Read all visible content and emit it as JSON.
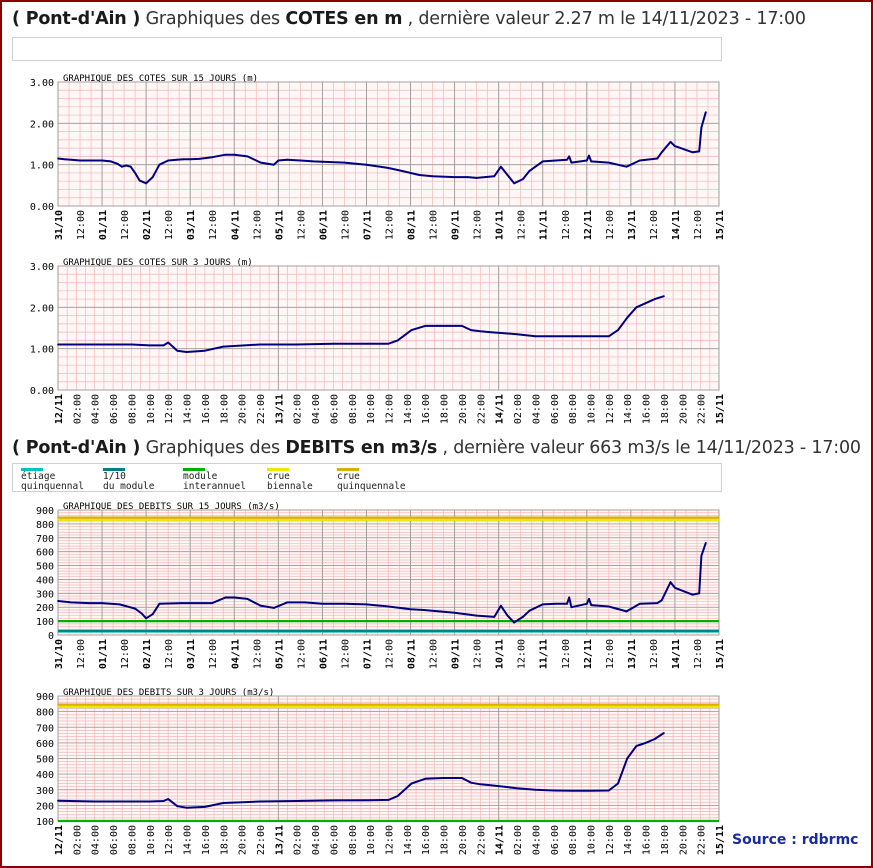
{
  "cotes_heading": {
    "station": "( Pont-d'Ain )",
    "prefix": " Graphiques des ",
    "measure": "COTES en m",
    "suffix": " , dernière valeur 2.27 m le 14/11/2023 - 17:00"
  },
  "debits_heading": {
    "station": "( Pont-d'Ain )",
    "prefix": " Graphiques des ",
    "measure": "DEBITS en m3/s",
    "suffix": " , dernière valeur 663 m3/s le 14/11/2023 - 17:00"
  },
  "legend": [
    {
      "line1": "étiage",
      "line2": "quinquennal",
      "color": "#00c0c0"
    },
    {
      "line1": "1/10",
      "line2": "du module",
      "color": "#008080"
    },
    {
      "line1": "module",
      "line2": "interannuel",
      "color": "#00b000"
    },
    {
      "line1": "crue",
      "line2": "biennale",
      "color": "#e8e800"
    },
    {
      "line1": "crue",
      "line2": "quinquennale",
      "color": "#d8b000"
    }
  ],
  "source": "Source : rdbrmc",
  "colors": {
    "series": "#000080",
    "grid_minor": "#f0b8b8",
    "grid_major": "#9a9a9a",
    "plot_bg": "#fff6f6"
  },
  "chart_data": [
    {
      "type": "line",
      "title": "GRAPHIQUE DES COTES SUR 15 JOURS (m)",
      "ylim": [
        0,
        3
      ],
      "yticks": [
        "0.00",
        "1.00",
        "2.00",
        "3.00"
      ],
      "xticks": [
        "31/10",
        "12:00",
        "01/11",
        "12:00",
        "02/11",
        "12:00",
        "03/11",
        "12:00",
        "04/11",
        "12:00",
        "05/11",
        "12:00",
        "06/11",
        "12:00",
        "07/11",
        "12:00",
        "08/11",
        "12:00",
        "09/11",
        "12:00",
        "10/11",
        "12:00",
        "11/11",
        "12:00",
        "12/11",
        "12:00",
        "13/11",
        "12:00",
        "14/11",
        "12:00",
        "15/11"
      ],
      "x": [
        0,
        0.15,
        0.3,
        0.5,
        0.7,
        0.9,
        1,
        1.2,
        1.35,
        1.45,
        1.55,
        1.65,
        1.75,
        1.85,
        2,
        2.15,
        2.3,
        2.5,
        2.7,
        2.85,
        3,
        3.2,
        3.5,
        3.8,
        4,
        4.3,
        4.6,
        4.9,
        5,
        5.2,
        5.5,
        5.8,
        6,
        6.5,
        7,
        7.5,
        7.8,
        8.2,
        8.5,
        9,
        9.3,
        9.5,
        9.9,
        10.05,
        10.2,
        10.35,
        10.55,
        10.7,
        11,
        11.3,
        11.55,
        11.6,
        11.65,
        12,
        12.05,
        12.1,
        12.5,
        12.9,
        13.2,
        13.6,
        13.7,
        13.9,
        14,
        14.4,
        14.55,
        14.6,
        14.7
      ],
      "series": [
        {
          "values": [
            1.15,
            1.13,
            1.12,
            1.1,
            1.1,
            1.1,
            1.1,
            1.08,
            1.02,
            0.95,
            0.98,
            0.95,
            0.8,
            0.62,
            0.55,
            0.7,
            1.0,
            1.1,
            1.12,
            1.13,
            1.13,
            1.14,
            1.18,
            1.24,
            1.24,
            1.2,
            1.05,
            1.0,
            1.1,
            1.12,
            1.1,
            1.08,
            1.07,
            1.05,
            1.0,
            0.92,
            0.85,
            0.75,
            0.72,
            0.7,
            0.7,
            0.68,
            0.72,
            0.95,
            0.75,
            0.55,
            0.65,
            0.85,
            1.08,
            1.1,
            1.12,
            1.2,
            1.05,
            1.1,
            1.22,
            1.08,
            1.05,
            0.95,
            1.1,
            1.15,
            1.3,
            1.55,
            1.45,
            1.3,
            1.32,
            1.9,
            2.27
          ]
        }
      ],
      "legend": "none"
    },
    {
      "type": "line",
      "title": "GRAPHIQUE DES COTES SUR 3 JOURS (m)",
      "ylim": [
        0,
        3
      ],
      "yticks": [
        "0.00",
        "1.00",
        "2.00",
        "3.00"
      ],
      "xticks": [
        "12/11",
        "02:00",
        "04:00",
        "06:00",
        "08:00",
        "10:00",
        "12:00",
        "14:00",
        "16:00",
        "18:00",
        "20:00",
        "22:00",
        "13/11",
        "02:00",
        "04:00",
        "06:00",
        "08:00",
        "10:00",
        "12:00",
        "14:00",
        "16:00",
        "18:00",
        "20:00",
        "22:00",
        "14/11",
        "02:00",
        "04:00",
        "06:00",
        "08:00",
        "10:00",
        "12:00",
        "14:00",
        "16:00",
        "18:00",
        "20:00",
        "22:00",
        "15/11"
      ],
      "x": [
        0,
        4,
        8,
        10,
        11.5,
        12,
        13,
        14,
        16,
        18,
        22,
        26,
        30,
        34,
        36,
        37,
        38.5,
        40,
        42,
        44,
        45,
        46,
        47,
        50,
        52,
        54,
        56,
        58,
        60,
        61,
        62,
        63,
        64,
        65,
        66
      ],
      "series": [
        {
          "values": [
            1.1,
            1.1,
            1.1,
            1.08,
            1.08,
            1.15,
            0.95,
            0.92,
            0.95,
            1.05,
            1.1,
            1.1,
            1.12,
            1.12,
            1.12,
            1.2,
            1.45,
            1.55,
            1.55,
            1.55,
            1.45,
            1.42,
            1.4,
            1.35,
            1.3,
            1.3,
            1.3,
            1.3,
            1.3,
            1.45,
            1.75,
            2.0,
            2.1,
            2.2,
            2.27
          ]
        }
      ],
      "legend": "none"
    },
    {
      "type": "line",
      "title": "GRAPHIQUE DES DEBITS SUR 15 JOURS (m3/s)",
      "ylim": [
        0,
        900
      ],
      "yticks": [
        "0",
        "100",
        "200",
        "300",
        "400",
        "500",
        "600",
        "700",
        "800",
        "900"
      ],
      "xticks": [
        "31/10",
        "12:00",
        "01/11",
        "12:00",
        "02/11",
        "12:00",
        "03/11",
        "12:00",
        "04/11",
        "12:00",
        "05/11",
        "12:00",
        "06/11",
        "12:00",
        "07/11",
        "12:00",
        "08/11",
        "12:00",
        "09/11",
        "12:00",
        "10/11",
        "12:00",
        "11/11",
        "12:00",
        "12/11",
        "12:00",
        "13/11",
        "12:00",
        "14/11",
        "12:00",
        "15/11"
      ],
      "x": [
        0,
        0.3,
        0.7,
        1,
        1.4,
        1.75,
        1.9,
        2,
        2.15,
        2.3,
        2.8,
        3.5,
        3.8,
        4,
        4.3,
        4.6,
        4.9,
        5.2,
        5.6,
        6,
        6.5,
        7,
        7.5,
        8,
        8.3,
        9,
        9.5,
        9.9,
        10.05,
        10.2,
        10.35,
        10.55,
        10.7,
        11,
        11.3,
        11.55,
        11.6,
        11.65,
        12,
        12.05,
        12.1,
        12.5,
        12.9,
        13.2,
        13.6,
        13.7,
        13.9,
        14,
        14.4,
        14.55,
        14.6,
        14.7
      ],
      "series": [
        {
          "values": [
            245,
            235,
            230,
            230,
            220,
            190,
            155,
            120,
            150,
            225,
            230,
            230,
            270,
            270,
            260,
            210,
            195,
            235,
            235,
            225,
            225,
            220,
            205,
            185,
            180,
            160,
            140,
            130,
            210,
            140,
            90,
            130,
            175,
            220,
            225,
            225,
            270,
            200,
            225,
            260,
            215,
            205,
            170,
            225,
            230,
            250,
            380,
            340,
            290,
            300,
            570,
            663
          ]
        }
      ],
      "thresholds": [
        {
          "value": 25,
          "color": "#00c0c0"
        },
        {
          "value": 30,
          "color": "#008080"
        },
        {
          "value": 100,
          "color": "#00b000"
        },
        {
          "value": 830,
          "color": "#e8e800"
        },
        {
          "value": 845,
          "color": "#d8b000"
        }
      ],
      "legend": "top"
    },
    {
      "type": "line",
      "title": "GRAPHIQUE DES DEBITS SUR 3 JOURS (m3/s)",
      "ylim": [
        100,
        900
      ],
      "yticks": [
        "100",
        "200",
        "300",
        "400",
        "500",
        "600",
        "700",
        "800",
        "900"
      ],
      "xticks": [
        "12/11",
        "02:00",
        "04:00",
        "06:00",
        "08:00",
        "10:00",
        "12:00",
        "14:00",
        "16:00",
        "18:00",
        "20:00",
        "22:00",
        "13/11",
        "02:00",
        "04:00",
        "06:00",
        "08:00",
        "10:00",
        "12:00",
        "14:00",
        "16:00",
        "18:00",
        "20:00",
        "22:00",
        "14/11",
        "02:00",
        "04:00",
        "06:00",
        "08:00",
        "10:00",
        "12:00",
        "14:00",
        "16:00",
        "18:00",
        "20:00",
        "22:00",
        "15/11"
      ],
      "x": [
        0,
        4,
        8,
        10,
        11.5,
        12,
        13,
        14,
        16,
        18,
        22,
        26,
        30,
        34,
        36,
        37,
        38.5,
        40,
        42,
        44,
        45,
        46,
        47,
        50,
        52,
        54,
        56,
        58,
        60,
        61,
        62,
        63,
        64,
        65,
        66
      ],
      "series": [
        {
          "values": [
            230,
            225,
            225,
            225,
            228,
            240,
            195,
            185,
            190,
            215,
            225,
            228,
            232,
            233,
            235,
            260,
            340,
            370,
            375,
            375,
            345,
            335,
            330,
            310,
            300,
            295,
            293,
            293,
            295,
            340,
            500,
            580,
            600,
            625,
            663
          ]
        }
      ],
      "thresholds": [
        {
          "value": 100,
          "color": "#00b000"
        },
        {
          "value": 830,
          "color": "#e8e800"
        },
        {
          "value": 845,
          "color": "#d8b000"
        }
      ],
      "legend": "top"
    }
  ]
}
